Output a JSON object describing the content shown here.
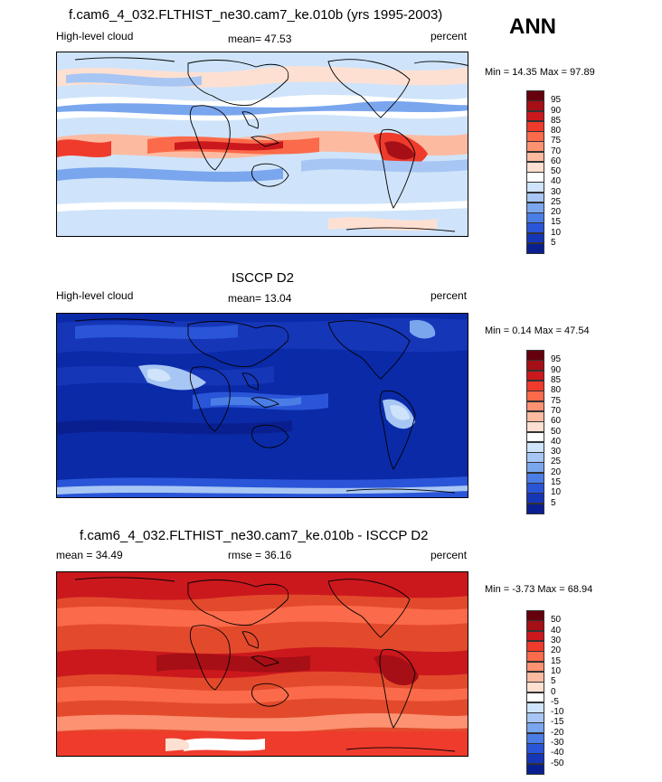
{
  "season_label": "ANN",
  "panels": [
    {
      "title": "f.cam6_4_032.FLTHIST_ne30.cam7_ke.010b (yrs 1995-2003)",
      "left_label": "High-level cloud",
      "center_label": "mean=  47.53",
      "right_label": "percent",
      "minmax": "Min =  14.35 Max =  97.89",
      "background": "#cfe4fa",
      "colorbar": {
        "labels": [
          "95",
          "90",
          "85",
          "80",
          "75",
          "70",
          "60",
          "50",
          "40",
          "30",
          "25",
          "20",
          "15",
          "10",
          "5"
        ],
        "colors": [
          "#67000d",
          "#a50f15",
          "#cb181d",
          "#ef3b2c",
          "#fb6a4a",
          "#fc9272",
          "#fcbba1",
          "#fee0d2",
          "#ffffff",
          "#cfe4fa",
          "#a7c6f4",
          "#7aa6ee",
          "#4a7ee6",
          "#2a55d8",
          "#1636b8",
          "#0a1f8f"
        ]
      }
    },
    {
      "title": "ISCCP D2",
      "left_label": "High-level cloud",
      "center_label": "mean=  13.04",
      "right_label": "percent",
      "minmax": "Min =  0.14 Max =  47.54",
      "background": "#0a2aa8",
      "colorbar": {
        "labels": [
          "95",
          "90",
          "85",
          "80",
          "75",
          "70",
          "60",
          "50",
          "40",
          "30",
          "25",
          "20",
          "15",
          "10",
          "5"
        ],
        "colors": [
          "#67000d",
          "#a50f15",
          "#cb181d",
          "#ef3b2c",
          "#fb6a4a",
          "#fc9272",
          "#fcbba1",
          "#fee0d2",
          "#ffffff",
          "#cfe4fa",
          "#a7c6f4",
          "#7aa6ee",
          "#4a7ee6",
          "#2a55d8",
          "#1636b8",
          "#0a1f8f"
        ]
      }
    },
    {
      "title": "f.cam6_4_032.FLTHIST_ne30.cam7_ke.010b - ISCCP D2",
      "left_label": "mean =  34.49",
      "center_label": "rmse =  36.16",
      "right_label": "percent",
      "minmax": "Min =  -3.73 Max =  68.94",
      "background": "#e34a2c",
      "colorbar": {
        "labels": [
          "50",
          "40",
          "30",
          "20",
          "15",
          "10",
          "5",
          "0",
          "-5",
          "-10",
          "-15",
          "-20",
          "-30",
          "-40",
          "-50"
        ],
        "colors": [
          "#67000d",
          "#a50f15",
          "#cb181d",
          "#ef3b2c",
          "#fb6a4a",
          "#fc9272",
          "#fcbba1",
          "#fee0d2",
          "#ffffff",
          "#cfe4fa",
          "#a7c6f4",
          "#7aa6ee",
          "#4a7ee6",
          "#2a55d8",
          "#1636b8",
          "#0a1f8f"
        ]
      }
    }
  ]
}
